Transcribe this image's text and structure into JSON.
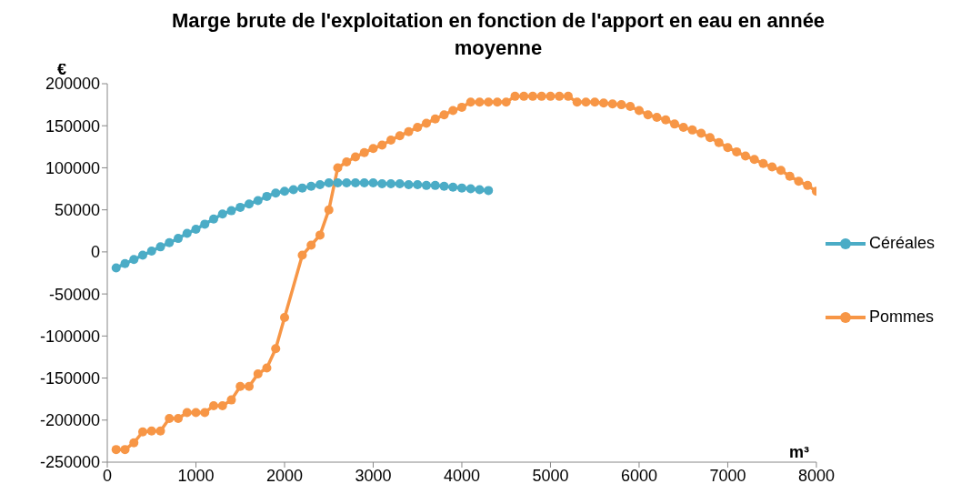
{
  "chart_data": {
    "type": "line",
    "title": "Marge brute de l'exploitation en fonction de l'apport en eau en année moyenne",
    "xlabel": "m³",
    "ylabel": "€",
    "xlim": [
      0,
      8000
    ],
    "xticks": [
      0,
      1000,
      2000,
      3000,
      4000,
      5000,
      6000,
      7000,
      8000
    ],
    "ylim": [
      -250000,
      200000
    ],
    "yticks": [
      -250000,
      -200000,
      -150000,
      -100000,
      -50000,
      0,
      50000,
      100000,
      150000,
      200000
    ],
    "grid": false,
    "legend": "right",
    "marker": "circle",
    "line_style": "solid",
    "series": [
      {
        "name": "Céréales",
        "color": "#4bacc6",
        "x": [
          100,
          200,
          300,
          400,
          500,
          600,
          700,
          800,
          900,
          1000,
          1100,
          1200,
          1300,
          1400,
          1500,
          1600,
          1700,
          1800,
          1900,
          2000,
          2100,
          2200,
          2300,
          2400,
          2500,
          2600,
          2700,
          2800,
          2900,
          3000,
          3100,
          3200,
          3300,
          3400,
          3500,
          3600,
          3700,
          3800,
          3900,
          4000,
          4100,
          4200,
          4300
        ],
        "values": [
          -19000,
          -14000,
          -9000,
          -4000,
          1000,
          6000,
          11000,
          16000,
          22000,
          27000,
          33000,
          39000,
          45000,
          49000,
          53000,
          57000,
          61000,
          66000,
          70000,
          72000,
          74000,
          76000,
          78000,
          80000,
          82000,
          82000,
          82000,
          82000,
          82000,
          82000,
          81000,
          81000,
          81000,
          80000,
          80000,
          79000,
          79000,
          78000,
          77000,
          76000,
          75000,
          74000,
          73000
        ]
      },
      {
        "name": "Pommes",
        "color": "#f79646",
        "x": [
          100,
          200,
          300,
          400,
          500,
          600,
          700,
          800,
          900,
          1000,
          1100,
          1200,
          1300,
          1400,
          1500,
          1600,
          1700,
          1800,
          1900,
          2000,
          2200,
          2300,
          2400,
          2500,
          2600,
          2700,
          2800,
          2900,
          3000,
          3100,
          3200,
          3300,
          3400,
          3500,
          3600,
          3700,
          3800,
          3900,
          4000,
          4100,
          4200,
          4300,
          4400,
          4500,
          4600,
          4700,
          4800,
          4900,
          5000,
          5100,
          5200,
          5300,
          5400,
          5500,
          5600,
          5700,
          5800,
          5900,
          6000,
          6100,
          6200,
          6300,
          6400,
          6500,
          6600,
          6700,
          6800,
          6900,
          7000,
          7100,
          7200,
          7300,
          7400,
          7500,
          7600,
          7700,
          7800,
          7900,
          8000
        ],
        "values": [
          -235000,
          -235000,
          -227000,
          -214000,
          -213000,
          -213000,
          -198000,
          -198000,
          -191000,
          -191000,
          -191000,
          -183000,
          -183000,
          -176000,
          -160000,
          -160000,
          -145000,
          -138000,
          -115000,
          -78000,
          -4000,
          8000,
          20000,
          50000,
          100000,
          107000,
          113000,
          118000,
          123000,
          127000,
          133000,
          138000,
          143000,
          148000,
          153000,
          158000,
          163000,
          168000,
          172000,
          178000,
          178000,
          178000,
          178000,
          178000,
          185000,
          185000,
          185000,
          185000,
          185000,
          185000,
          185000,
          178000,
          178000,
          178000,
          177000,
          176000,
          175000,
          173000,
          168000,
          163000,
          160000,
          157000,
          152000,
          148000,
          145000,
          141000,
          136000,
          130000,
          124000,
          119000,
          114000,
          110000,
          105000,
          101000,
          97000,
          90000,
          84000,
          79000,
          72000
        ]
      }
    ]
  }
}
